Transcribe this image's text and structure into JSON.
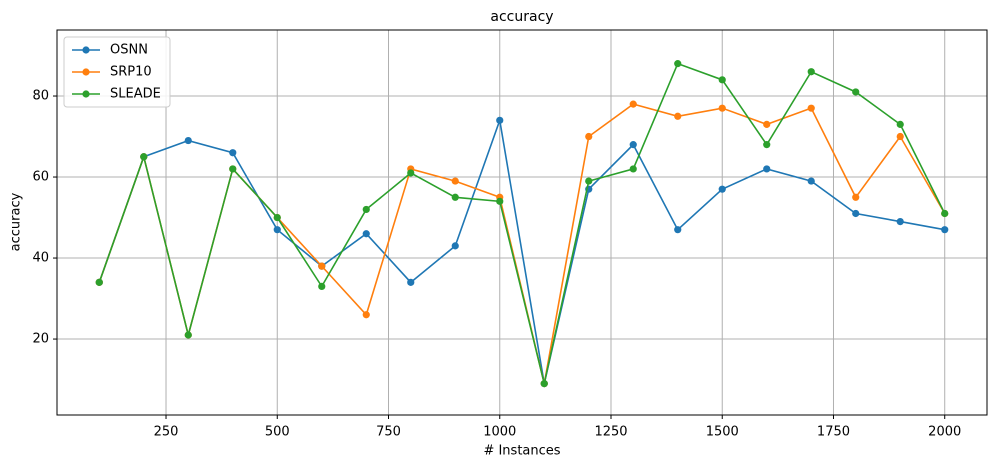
{
  "chart_data": {
    "type": "line",
    "title": "accuracy",
    "x_label": "# Instances",
    "y_label": "accuracy",
    "x": [
      100,
      200,
      300,
      400,
      500,
      600,
      700,
      800,
      900,
      1000,
      1100,
      1200,
      1300,
      1400,
      1500,
      1600,
      1700,
      1800,
      1900,
      2000
    ],
    "series": [
      {
        "name": "OSNN",
        "color": "#1f77b4",
        "values": [
          34,
          65,
          69,
          66,
          47,
          38,
          46,
          34,
          43,
          74,
          9,
          57,
          68,
          47,
          57,
          62,
          59,
          51,
          49,
          47
        ]
      },
      {
        "name": "SRP10",
        "color": "#ff7f0e",
        "values": [
          34,
          65,
          21,
          62,
          50,
          38,
          26,
          62,
          59,
          55,
          9,
          70,
          78,
          75,
          77,
          73,
          77,
          55,
          70,
          51
        ]
      },
      {
        "name": "SLEADE",
        "color": "#2ca02c",
        "values": [
          34,
          65,
          21,
          62,
          50,
          33,
          52,
          61,
          55,
          54,
          9,
          59,
          62,
          88,
          84,
          68,
          86,
          81,
          73,
          51
        ]
      }
    ],
    "xlim": [
      5,
      2095
    ],
    "ylim": [
      1.25,
      96.3
    ],
    "xticks": [
      250,
      500,
      750,
      1000,
      1250,
      1500,
      1750,
      2000
    ],
    "yticks": [
      20,
      40,
      60,
      80
    ],
    "grid": true,
    "legend": "upper-left"
  }
}
